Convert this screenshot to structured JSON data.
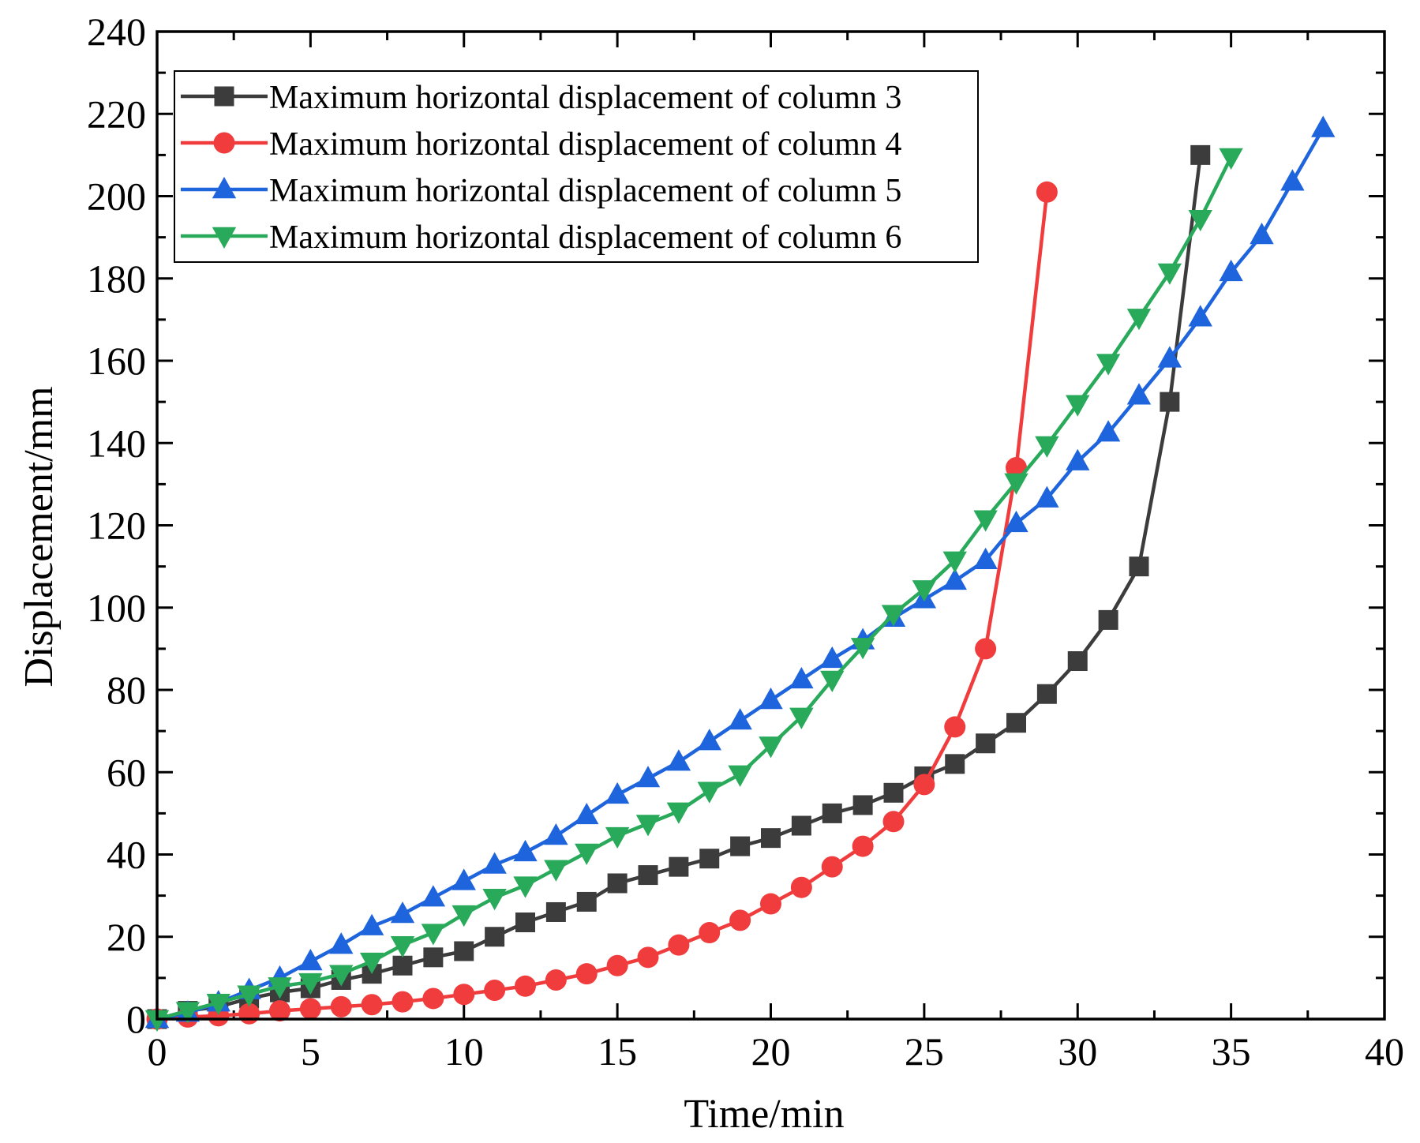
{
  "chart_data": {
    "type": "line",
    "title": "",
    "xlabel": "Time/min",
    "ylabel": "Displacement/mm",
    "xlim": [
      0,
      40
    ],
    "ylim": [
      0,
      240
    ],
    "xticks": [
      0,
      5,
      10,
      15,
      20,
      25,
      30,
      35,
      40
    ],
    "yticks": [
      0,
      20,
      40,
      60,
      80,
      100,
      120,
      140,
      160,
      180,
      200,
      220,
      240
    ],
    "grid": false,
    "legend_position": "top-left",
    "series": [
      {
        "name": "Maximum horizontal displacement of column 3",
        "color": "#3c3c3c",
        "marker": "square",
        "x": [
          0,
          1,
          2,
          3,
          4,
          5,
          6,
          7,
          8,
          9,
          10,
          11,
          12,
          13,
          14,
          15,
          16,
          17,
          18,
          19,
          20,
          21,
          22,
          23,
          24,
          25,
          26,
          27,
          28,
          29,
          30,
          31,
          32,
          33,
          34
        ],
        "y": [
          0,
          2,
          3,
          5,
          6.5,
          7.5,
          9.5,
          11,
          13,
          15,
          16.5,
          20,
          23.5,
          26,
          28.5,
          33,
          35,
          37,
          39,
          42,
          44,
          47,
          50,
          52,
          55,
          59,
          62,
          67,
          72,
          79,
          87,
          97,
          110,
          150,
          210
        ]
      },
      {
        "name": "Maximum horizontal displacement of column 4",
        "color": "#f03c3c",
        "marker": "circle",
        "x": [
          0,
          1,
          2,
          3,
          4,
          5,
          6,
          7,
          8,
          9,
          10,
          11,
          12,
          13,
          14,
          15,
          16,
          17,
          18,
          19,
          20,
          21,
          22,
          23,
          24,
          25,
          26,
          27,
          28,
          29
        ],
        "y": [
          0,
          0.5,
          0.8,
          1.3,
          2,
          2.5,
          3,
          3.5,
          4.2,
          5,
          6,
          7,
          8,
          9.5,
          11,
          13,
          15,
          18,
          21,
          24,
          28,
          32,
          37,
          42,
          48,
          57,
          71,
          90,
          134,
          201
        ]
      },
      {
        "name": "Maximum horizontal displacement of column 5",
        "color": "#1e64dc",
        "marker": "triangle-up",
        "x": [
          0,
          1,
          2,
          3,
          4,
          5,
          6,
          7,
          8,
          9,
          10,
          11,
          12,
          13,
          14,
          15,
          16,
          17,
          18,
          19,
          20,
          21,
          22,
          23,
          24,
          25,
          26,
          27,
          28,
          29,
          30,
          31,
          32,
          33,
          34,
          35,
          36,
          37,
          38
        ],
        "y": [
          0,
          1.5,
          4,
          7,
          10,
          14,
          18,
          22.5,
          25.5,
          29.5,
          33.5,
          37.5,
          40.5,
          44.5,
          49.5,
          54.5,
          58.5,
          62.5,
          67.5,
          72.5,
          77.5,
          82.5,
          87.5,
          92,
          97.5,
          102,
          106.5,
          111.5,
          120.5,
          126.5,
          135.5,
          142.5,
          151.5,
          160.5,
          170.5,
          181.5,
          190.5,
          203.5,
          216.5
        ]
      },
      {
        "name": "Maximum horizontal displacement of column 6",
        "color": "#28aa5a",
        "marker": "triangle-down",
        "x": [
          0,
          1,
          2,
          3,
          4,
          5,
          6,
          7,
          8,
          9,
          10,
          11,
          12,
          13,
          14,
          15,
          16,
          17,
          18,
          19,
          20,
          21,
          22,
          23,
          24,
          25,
          26,
          27,
          28,
          29,
          30,
          31,
          32,
          33,
          34,
          35
        ],
        "y": [
          0,
          2,
          4,
          6,
          8,
          9,
          11,
          14,
          18,
          21,
          25.5,
          29.5,
          32.5,
          36.5,
          40.5,
          44.5,
          47.5,
          50.5,
          55.5,
          59.5,
          66.5,
          73.5,
          82.5,
          90.5,
          98.5,
          104.5,
          111.5,
          121.5,
          130.5,
          139.5,
          149.5,
          159.5,
          170.5,
          181.5,
          194.5,
          209.5
        ]
      }
    ]
  }
}
